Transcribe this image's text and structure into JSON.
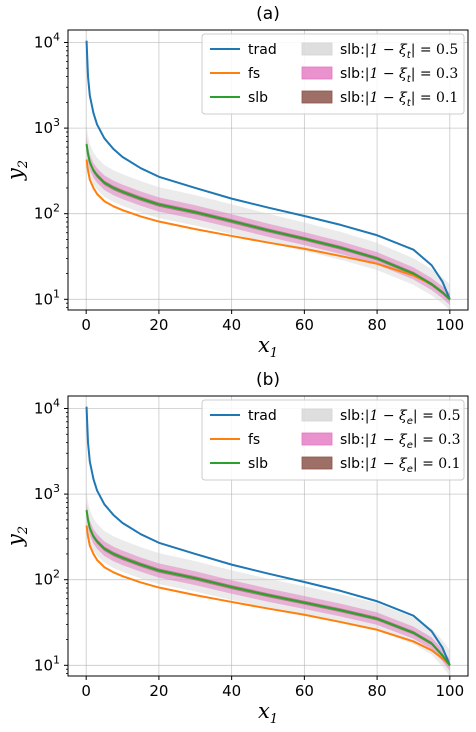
{
  "chart_data": [
    {
      "type": "line",
      "title": "(a)",
      "xlabel": "x",
      "xlabel_sub": "1",
      "ylabel": "y",
      "ylabel_sub": "2",
      "xlim": [
        -5,
        105
      ],
      "ylim": [
        7.5,
        14000
      ],
      "yscale": "log",
      "grid": true,
      "legend_position": "top-right",
      "xticks": [
        0,
        20,
        40,
        60,
        80,
        100
      ],
      "yticks": [
        10,
        100,
        1000,
        10000
      ],
      "x": [
        0.1,
        0.5,
        1,
        2,
        3,
        5,
        7.5,
        10,
        15,
        20,
        30,
        40,
        50,
        60,
        70,
        80,
        90,
        95,
        98,
        100
      ],
      "series": [
        {
          "name": "trad",
          "color": "#1f77b4",
          "values": [
            10500,
            4000,
            2400,
            1500,
            1100,
            760,
            570,
            460,
            340,
            270,
            200,
            150,
            118,
            94,
            74,
            56,
            38,
            25,
            16,
            10
          ]
        },
        {
          "name": "fs",
          "color": "#ff7f0e",
          "values": [
            430,
            320,
            250,
            200,
            170,
            140,
            122,
            110,
            93,
            81,
            66,
            55,
            46,
            39,
            32,
            26,
            19,
            15,
            12,
            10
          ]
        },
        {
          "name": "slb",
          "color": "#2ca02c",
          "values": [
            650,
            500,
            400,
            320,
            280,
            230,
            200,
            180,
            150,
            128,
            104,
            82,
            64,
            51,
            40,
            30,
            20,
            15,
            12,
            10
          ]
        }
      ],
      "bands": [
        {
          "name": "slb:",
          "math": "|1 − ξ",
          "sub": "t",
          "suffix": "| = 0.5",
          "color": "#d3d3d3",
          "opacity": 0.45,
          "factor_low": 0.68,
          "factor_high": 1.62
        },
        {
          "name": "slb:",
          "math": "|1 − ξ",
          "sub": "t",
          "suffix": "| = 0.3",
          "color": "#e377c2",
          "opacity": 0.5,
          "factor_low": 0.82,
          "factor_high": 1.22
        },
        {
          "name": "slb:",
          "math": "|1 − ξ",
          "sub": "t",
          "suffix": "| = 0.1",
          "color": "#8c564b",
          "opacity": 0.55,
          "factor_low": 0.94,
          "factor_high": 1.06
        }
      ]
    },
    {
      "type": "line",
      "title": "(b)",
      "xlabel": "x",
      "xlabel_sub": "1",
      "ylabel": "y",
      "ylabel_sub": "2",
      "xlim": [
        -5,
        105
      ],
      "ylim": [
        7.5,
        14000
      ],
      "yscale": "log",
      "grid": true,
      "legend_position": "top-right",
      "xticks": [
        0,
        20,
        40,
        60,
        80,
        100
      ],
      "yticks": [
        10,
        100,
        1000,
        10000
      ],
      "x": [
        0.1,
        0.5,
        1,
        2,
        3,
        5,
        7.5,
        10,
        15,
        20,
        30,
        40,
        50,
        60,
        70,
        80,
        90,
        95,
        98,
        100
      ],
      "series": [
        {
          "name": "trad",
          "color": "#1f77b4",
          "values": [
            10500,
            4000,
            2400,
            1500,
            1100,
            760,
            570,
            460,
            340,
            270,
            200,
            150,
            118,
            94,
            74,
            56,
            38,
            25,
            16,
            10
          ]
        },
        {
          "name": "fs",
          "color": "#ff7f0e",
          "values": [
            430,
            320,
            250,
            200,
            170,
            140,
            122,
            110,
            93,
            81,
            66,
            55,
            46,
            39,
            32,
            26,
            19,
            15,
            12,
            10
          ]
        },
        {
          "name": "slb",
          "color": "#2ca02c",
          "values": [
            650,
            500,
            400,
            320,
            280,
            230,
            200,
            180,
            150,
            128,
            104,
            82,
            66,
            54,
            44,
            35,
            24,
            18,
            13,
            10
          ]
        }
      ],
      "bands": [
        {
          "name": "slb:",
          "math": "|1 − ξ",
          "sub": "e",
          "suffix": "| = 0.5",
          "color": "#d3d3d3",
          "opacity": 0.45,
          "factor_low": 0.68,
          "factor_high": 1.62
        },
        {
          "name": "slb:",
          "math": "|1 − ξ",
          "sub": "e",
          "suffix": "| = 0.3",
          "color": "#e377c2",
          "opacity": 0.5,
          "factor_low": 0.82,
          "factor_high": 1.22
        },
        {
          "name": "slb:",
          "math": "|1 − ξ",
          "sub": "e",
          "suffix": "| = 0.1",
          "color": "#8c564b",
          "opacity": 0.55,
          "factor_low": 0.94,
          "factor_high": 1.06
        }
      ]
    }
  ]
}
